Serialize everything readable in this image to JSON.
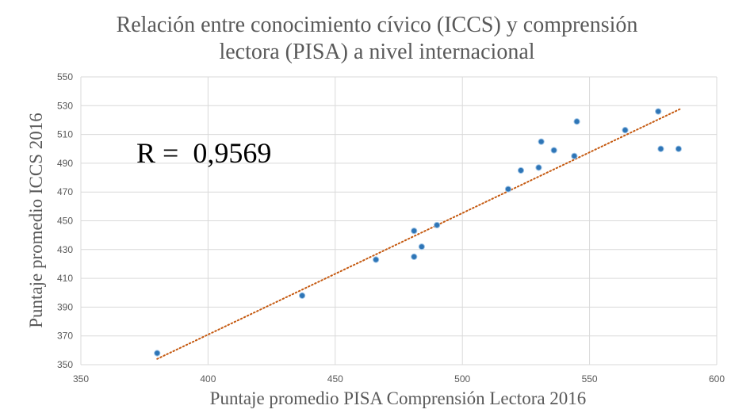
{
  "chart_data": {
    "type": "scatter",
    "title_line1": "Relación entre conocimiento cívico (ICCS) y comprensión",
    "title_line2": "lectora (PISA) a nivel internacional",
    "xlabel": "Puntaje promedio PISA Comprensión Lectora 2016",
    "ylabel": "Puntaje promedio ICCS 2016",
    "xlim": [
      350,
      600
    ],
    "ylim": [
      350,
      550
    ],
    "x_ticks": [
      350,
      400,
      450,
      500,
      550,
      600
    ],
    "y_ticks": [
      350,
      370,
      390,
      410,
      430,
      450,
      470,
      490,
      510,
      530,
      550
    ],
    "grid": true,
    "annotation": "R =  0,9569",
    "point_color": "#2e75b6",
    "trendline_color": "#c55a11",
    "trendline": {
      "x": [
        380,
        586
      ],
      "y": [
        354,
        528
      ]
    },
    "points": [
      {
        "x": 380,
        "y": 358
      },
      {
        "x": 437,
        "y": 398
      },
      {
        "x": 466,
        "y": 423
      },
      {
        "x": 481,
        "y": 443
      },
      {
        "x": 481,
        "y": 425
      },
      {
        "x": 484,
        "y": 432
      },
      {
        "x": 490,
        "y": 447
      },
      {
        "x": 518,
        "y": 472
      },
      {
        "x": 523,
        "y": 485
      },
      {
        "x": 530,
        "y": 487
      },
      {
        "x": 531,
        "y": 505
      },
      {
        "x": 536,
        "y": 499
      },
      {
        "x": 544,
        "y": 495
      },
      {
        "x": 545,
        "y": 519
      },
      {
        "x": 564,
        "y": 513
      },
      {
        "x": 577,
        "y": 526
      },
      {
        "x": 578,
        "y": 500
      },
      {
        "x": 585,
        "y": 500
      }
    ]
  }
}
